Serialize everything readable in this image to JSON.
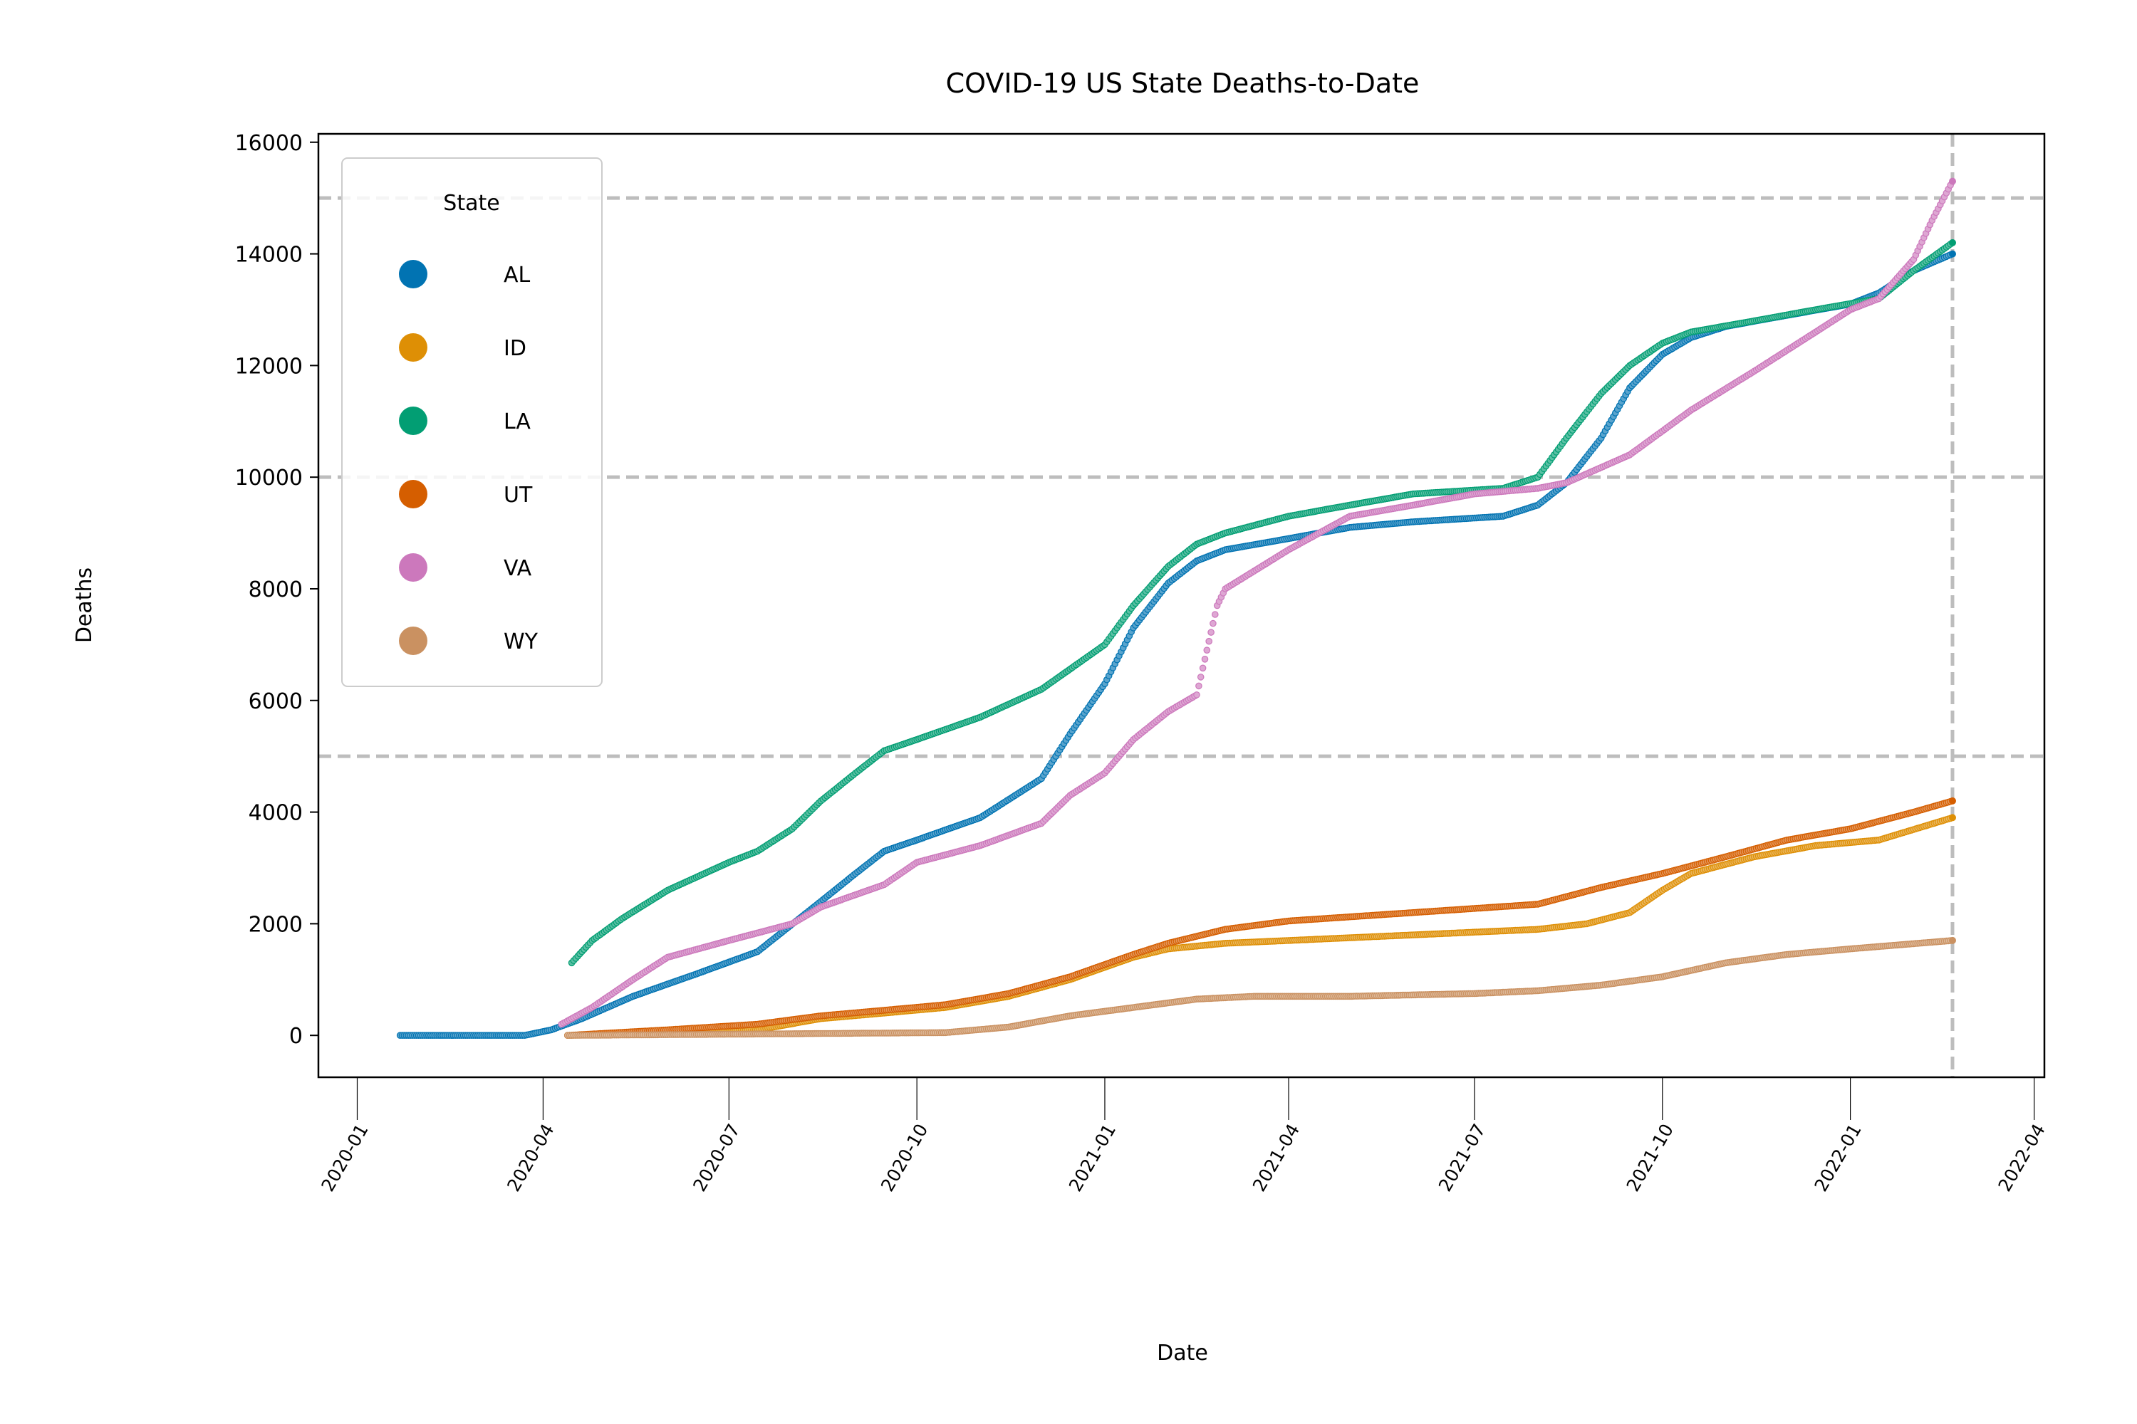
{
  "chart_data": {
    "type": "scatter",
    "title": "COVID-19 US State Deaths-to-Date",
    "xlabel": "Date",
    "ylabel": "Deaths",
    "x_axis_type": "date",
    "xlim": [
      "2019-12-13",
      "2022-04-06"
    ],
    "ylim": [
      -750,
      16150
    ],
    "yticks": [
      0,
      2000,
      4000,
      6000,
      8000,
      10000,
      12000,
      14000,
      16000
    ],
    "ytick_labels": [
      "0",
      "2000",
      "4000",
      "6000",
      "8000",
      "10000",
      "12000",
      "14000",
      "16000"
    ],
    "xticks": [
      "2020-01-01",
      "2020-04-01",
      "2020-07-01",
      "2020-10-01",
      "2021-01-01",
      "2021-04-01",
      "2021-07-01",
      "2021-10-01",
      "2022-01-01",
      "2022-04-01"
    ],
    "xtick_labels": [
      "2020-01",
      "2020-04",
      "2020-07",
      "2020-10",
      "2021-01",
      "2021-04",
      "2021-07",
      "2021-10",
      "2022-01",
      "2022-04"
    ],
    "reference_lines": {
      "horizontal": [
        5000,
        10000,
        15000
      ],
      "vertical": [
        "2022-02-20"
      ],
      "style": "dashed",
      "color": "#bdbdbd"
    },
    "grid": false,
    "legend": {
      "title": "State",
      "placement": "upper-left"
    },
    "series": [
      {
        "name": "AL",
        "color": "#0173b2",
        "points": [
          [
            "2020-01-22",
            0
          ],
          [
            "2020-03-23",
            0
          ],
          [
            "2020-04-05",
            100
          ],
          [
            "2020-04-20",
            300
          ],
          [
            "2020-05-15",
            700
          ],
          [
            "2020-06-15",
            1100
          ],
          [
            "2020-07-15",
            1500
          ],
          [
            "2020-08-15",
            2400
          ],
          [
            "2020-09-01",
            2900
          ],
          [
            "2020-09-15",
            3300
          ],
          [
            "2020-10-01",
            3500
          ],
          [
            "2020-11-01",
            3900
          ],
          [
            "2020-12-01",
            4600
          ],
          [
            "2020-12-15",
            5400
          ],
          [
            "2021-01-01",
            6300
          ],
          [
            "2021-01-15",
            7300
          ],
          [
            "2021-02-01",
            8100
          ],
          [
            "2021-02-15",
            8500
          ],
          [
            "2021-03-01",
            8700
          ],
          [
            "2021-04-01",
            8900
          ],
          [
            "2021-05-01",
            9100
          ],
          [
            "2021-06-01",
            9200
          ],
          [
            "2021-07-15",
            9300
          ],
          [
            "2021-08-01",
            9500
          ],
          [
            "2021-08-15",
            9900
          ],
          [
            "2021-09-01",
            10700
          ],
          [
            "2021-09-15",
            11600
          ],
          [
            "2021-10-01",
            12200
          ],
          [
            "2021-10-15",
            12500
          ],
          [
            "2021-11-01",
            12700
          ],
          [
            "2021-12-01",
            12900
          ],
          [
            "2022-01-01",
            13100
          ],
          [
            "2022-01-15",
            13300
          ],
          [
            "2022-02-01",
            13700
          ],
          [
            "2022-02-20",
            14000
          ]
        ]
      },
      {
        "name": "ID",
        "color": "#de8f05",
        "points": [
          [
            "2020-04-13",
            0
          ],
          [
            "2020-06-01",
            50
          ],
          [
            "2020-07-15",
            100
          ],
          [
            "2020-08-15",
            300
          ],
          [
            "2020-09-15",
            400
          ],
          [
            "2020-10-15",
            500
          ],
          [
            "2020-11-15",
            700
          ],
          [
            "2020-12-15",
            1000
          ],
          [
            "2021-01-15",
            1400
          ],
          [
            "2021-02-01",
            1550
          ],
          [
            "2021-03-01",
            1650
          ],
          [
            "2021-04-01",
            1700
          ],
          [
            "2021-06-01",
            1800
          ],
          [
            "2021-08-01",
            1900
          ],
          [
            "2021-08-25",
            2000
          ],
          [
            "2021-09-15",
            2200
          ],
          [
            "2021-10-01",
            2600
          ],
          [
            "2021-10-15",
            2900
          ],
          [
            "2021-11-15",
            3200
          ],
          [
            "2021-12-15",
            3400
          ],
          [
            "2022-01-15",
            3500
          ],
          [
            "2022-02-20",
            3900
          ]
        ]
      },
      {
        "name": "LA",
        "color": "#029e73",
        "points": [
          [
            "2020-04-15",
            1300
          ],
          [
            "2020-04-25",
            1700
          ],
          [
            "2020-05-10",
            2100
          ],
          [
            "2020-06-01",
            2600
          ],
          [
            "2020-07-01",
            3100
          ],
          [
            "2020-07-15",
            3300
          ],
          [
            "2020-08-01",
            3700
          ],
          [
            "2020-08-15",
            4200
          ],
          [
            "2020-09-01",
            4700
          ],
          [
            "2020-09-15",
            5100
          ],
          [
            "2020-10-01",
            5300
          ],
          [
            "2020-11-01",
            5700
          ],
          [
            "2020-12-01",
            6200
          ],
          [
            "2021-01-01",
            7000
          ],
          [
            "2021-01-15",
            7700
          ],
          [
            "2021-02-01",
            8400
          ],
          [
            "2021-02-15",
            8800
          ],
          [
            "2021-03-01",
            9000
          ],
          [
            "2021-04-01",
            9300
          ],
          [
            "2021-05-01",
            9500
          ],
          [
            "2021-06-01",
            9700
          ],
          [
            "2021-07-15",
            9800
          ],
          [
            "2021-08-01",
            10000
          ],
          [
            "2021-08-15",
            10700
          ],
          [
            "2021-09-01",
            11500
          ],
          [
            "2021-09-15",
            12000
          ],
          [
            "2021-10-01",
            12400
          ],
          [
            "2021-10-15",
            12600
          ],
          [
            "2021-11-15",
            12800
          ],
          [
            "2021-12-15",
            13000
          ],
          [
            "2022-01-15",
            13200
          ],
          [
            "2022-02-01",
            13700
          ],
          [
            "2022-02-20",
            14200
          ]
        ]
      },
      {
        "name": "UT",
        "color": "#d55e00",
        "points": [
          [
            "2020-04-13",
            0
          ],
          [
            "2020-06-01",
            100
          ],
          [
            "2020-07-15",
            200
          ],
          [
            "2020-08-15",
            350
          ],
          [
            "2020-09-15",
            450
          ],
          [
            "2020-10-15",
            550
          ],
          [
            "2020-11-15",
            750
          ],
          [
            "2020-12-15",
            1050
          ],
          [
            "2021-01-15",
            1450
          ],
          [
            "2021-02-01",
            1650
          ],
          [
            "2021-03-01",
            1900
          ],
          [
            "2021-04-01",
            2050
          ],
          [
            "2021-06-01",
            2200
          ],
          [
            "2021-08-01",
            2350
          ],
          [
            "2021-09-01",
            2650
          ],
          [
            "2021-10-01",
            2900
          ],
          [
            "2021-11-01",
            3200
          ],
          [
            "2021-12-01",
            3500
          ],
          [
            "2022-01-01",
            3700
          ],
          [
            "2022-02-01",
            4000
          ],
          [
            "2022-02-20",
            4200
          ]
        ]
      },
      {
        "name": "VA",
        "color": "#cc78bc",
        "points": [
          [
            "2020-04-10",
            200
          ],
          [
            "2020-04-25",
            500
          ],
          [
            "2020-05-15",
            1000
          ],
          [
            "2020-06-01",
            1400
          ],
          [
            "2020-07-01",
            1700
          ],
          [
            "2020-08-01",
            2000
          ],
          [
            "2020-08-15",
            2300
          ],
          [
            "2020-09-15",
            2700
          ],
          [
            "2020-10-01",
            3100
          ],
          [
            "2020-11-01",
            3400
          ],
          [
            "2020-12-01",
            3800
          ],
          [
            "2020-12-15",
            4300
          ],
          [
            "2021-01-01",
            4700
          ],
          [
            "2021-01-15",
            5300
          ],
          [
            "2021-02-01",
            5800
          ],
          [
            "2021-02-15",
            6100
          ],
          [
            "2021-02-25",
            7700
          ],
          [
            "2021-03-01",
            8000
          ],
          [
            "2021-04-01",
            8700
          ],
          [
            "2021-05-01",
            9300
          ],
          [
            "2021-06-01",
            9500
          ],
          [
            "2021-07-01",
            9700
          ],
          [
            "2021-08-01",
            9800
          ],
          [
            "2021-08-15",
            9900
          ],
          [
            "2021-09-15",
            10400
          ],
          [
            "2021-10-15",
            11200
          ],
          [
            "2021-11-15",
            11900
          ],
          [
            "2021-12-15",
            12600
          ],
          [
            "2022-01-01",
            13000
          ],
          [
            "2022-01-15",
            13200
          ],
          [
            "2022-02-01",
            13900
          ],
          [
            "2022-02-10",
            14600
          ],
          [
            "2022-02-20",
            15300
          ]
        ]
      },
      {
        "name": "WY",
        "color": "#ca9161",
        "points": [
          [
            "2020-04-13",
            0
          ],
          [
            "2020-10-15",
            50
          ],
          [
            "2020-11-15",
            150
          ],
          [
            "2020-12-15",
            350
          ],
          [
            "2021-01-15",
            500
          ],
          [
            "2021-02-15",
            650
          ],
          [
            "2021-03-15",
            700
          ],
          [
            "2021-05-01",
            700
          ],
          [
            "2021-07-01",
            750
          ],
          [
            "2021-08-01",
            800
          ],
          [
            "2021-09-01",
            900
          ],
          [
            "2021-10-01",
            1050
          ],
          [
            "2021-11-01",
            1300
          ],
          [
            "2021-12-01",
            1450
          ],
          [
            "2022-01-01",
            1550
          ],
          [
            "2022-02-20",
            1700
          ]
        ]
      }
    ]
  }
}
